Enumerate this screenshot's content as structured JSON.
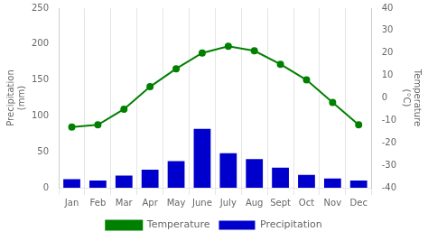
{
  "chart_data": {
    "type": "bar",
    "categories": [
      "Jan",
      "Feb",
      "Mar",
      "Apr",
      "May",
      "June",
      "July",
      "Aug",
      "Sept",
      "Oct",
      "Nov",
      "Dec"
    ],
    "series": [
      {
        "name": "Temperature",
        "type": "line",
        "color": "#008000",
        "marker": "circle",
        "axis": "y2",
        "values": [
          -13,
          -12,
          -5,
          5,
          13,
          20,
          23,
          21,
          15,
          8,
          -2,
          -12
        ]
      },
      {
        "name": "Precipitation",
        "type": "bar",
        "color": "#0000cc",
        "values": [
          12,
          10,
          17,
          25,
          37,
          82,
          48,
          40,
          28,
          18,
          13,
          10
        ]
      }
    ],
    "ylabel": "Precipitation\n(mm)",
    "y2label": "Temperature\n(°C)",
    "ylim": [
      0,
      250
    ],
    "yticks": [
      0,
      50,
      100,
      150,
      200,
      250
    ],
    "y2lim": [
      -40,
      40
    ],
    "y2ticks": [
      -40,
      -30,
      -20,
      -10,
      0,
      10,
      20,
      30,
      40
    ],
    "grid": true,
    "legend": "bottom"
  }
}
